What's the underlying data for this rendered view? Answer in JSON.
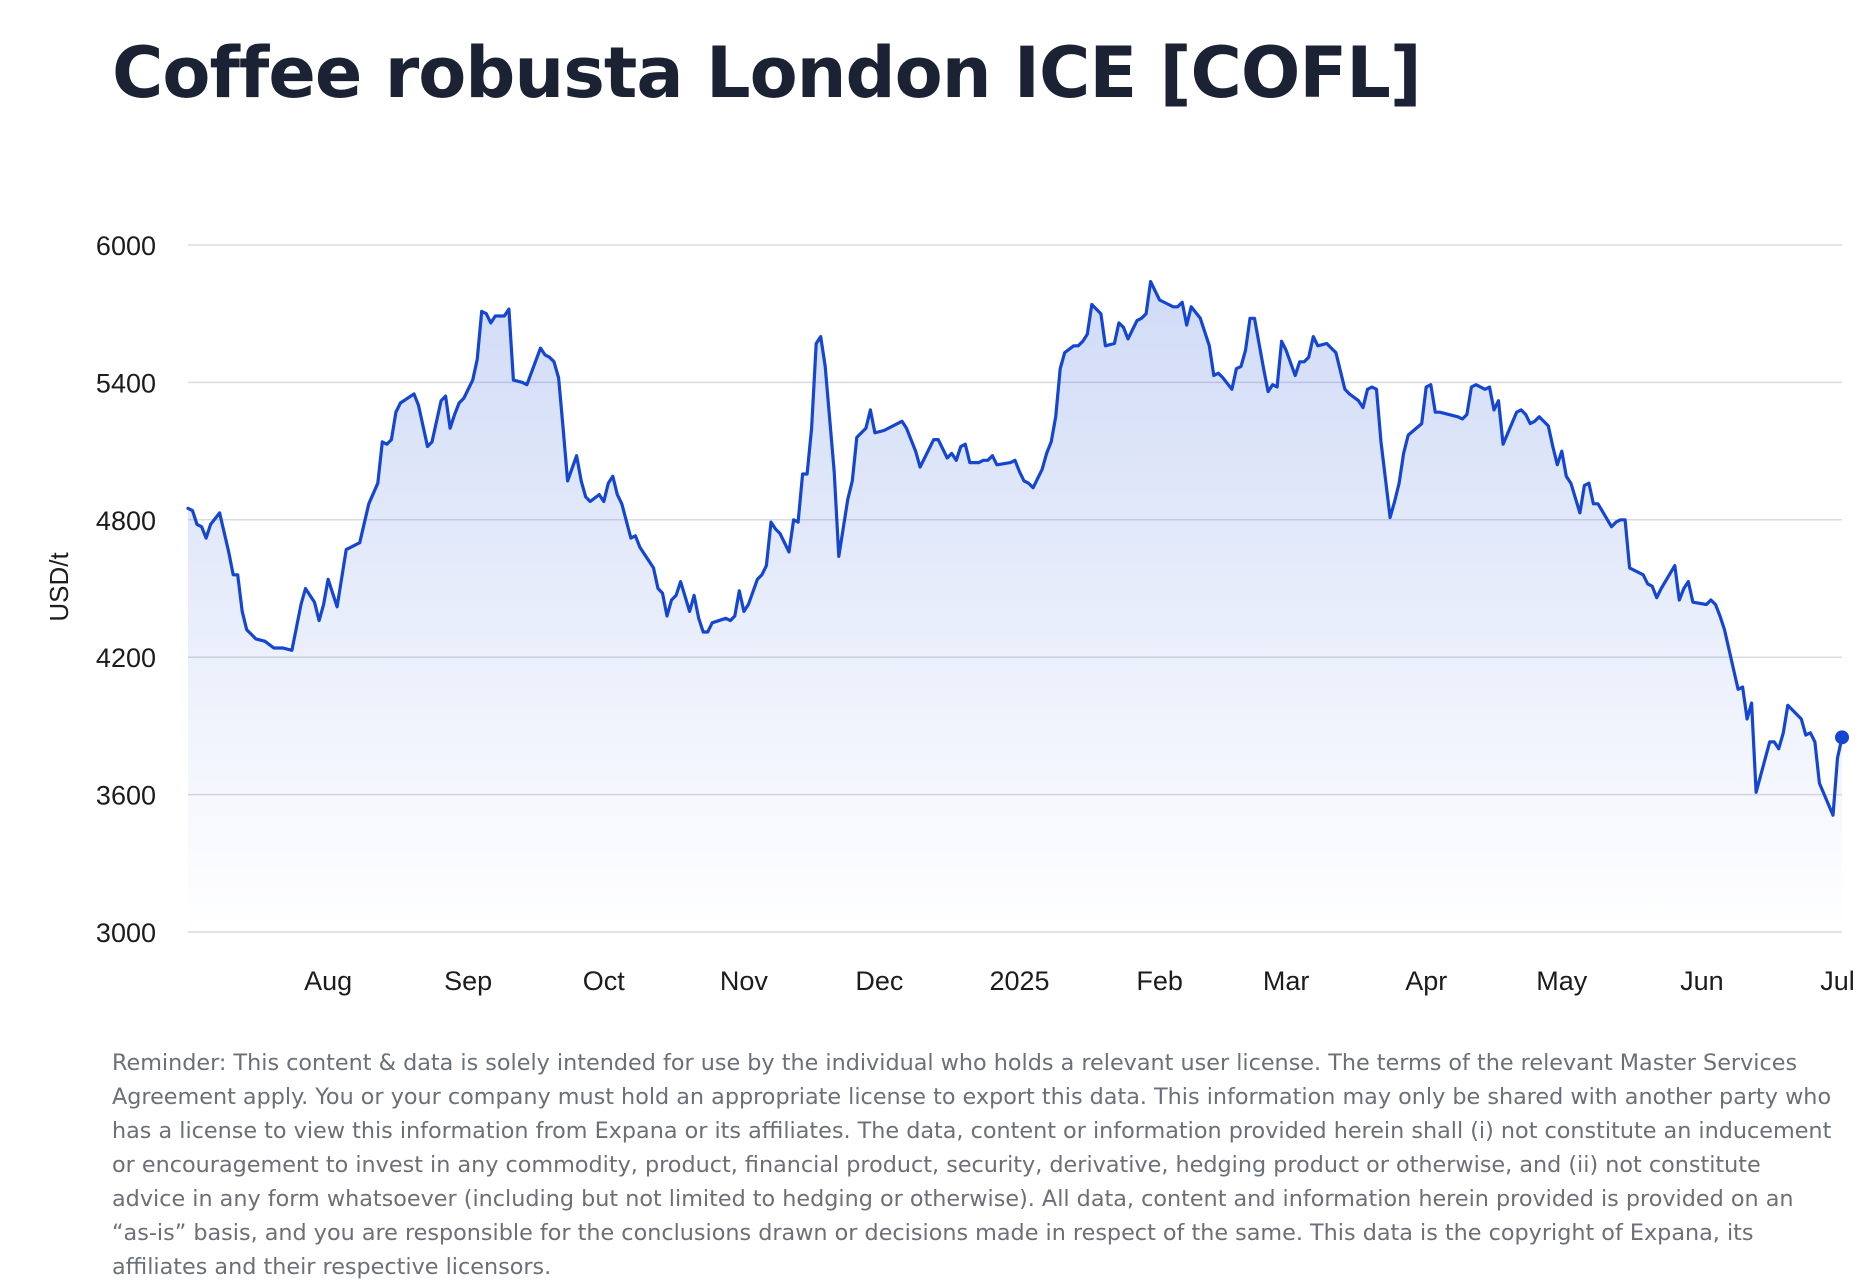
{
  "title": "Coffee robusta London ICE [COFL]",
  "colors": {
    "line": "#1446d1",
    "fill": "#2b5bd7",
    "grid": "#d8dbe2"
  },
  "chart_data": {
    "type": "area",
    "title": "Coffee robusta London ICE [COFL]",
    "xlabel": "",
    "ylabel": "USD/t",
    "ylim": [
      3000,
      6000
    ],
    "yticks": [
      3000,
      3600,
      4200,
      4800,
      5400,
      6000
    ],
    "xlim": [
      "2024-07-15",
      "2025-07-16"
    ],
    "xticks": [
      {
        "date": "2024-08-01",
        "label": "Aug"
      },
      {
        "date": "2024-09-01",
        "label": "Sep"
      },
      {
        "date": "2024-10-01",
        "label": "Oct"
      },
      {
        "date": "2024-11-01",
        "label": "Nov"
      },
      {
        "date": "2024-12-01",
        "label": "Dec"
      },
      {
        "date": "2025-01-01",
        "label": "2025"
      },
      {
        "date": "2025-02-01",
        "label": "Feb"
      },
      {
        "date": "2025-03-01",
        "label": "Mar"
      },
      {
        "date": "2025-04-01",
        "label": "Apr"
      },
      {
        "date": "2025-05-01",
        "label": "May"
      },
      {
        "date": "2025-06-01",
        "label": "Jun"
      },
      {
        "date": "2025-07-01",
        "label": "Jul"
      }
    ],
    "grid": true,
    "legend": "none",
    "series": [
      {
        "name": "COFL",
        "x": [
          "2024-07-15",
          "2024-07-16",
          "2024-07-17",
          "2024-07-18",
          "2024-07-19",
          "2024-07-20",
          "2024-07-22",
          "2024-07-24",
          "2024-07-25",
          "2024-07-26",
          "2024-07-27",
          "2024-07-28",
          "2024-07-29",
          "2024-07-30",
          "2024-08-01",
          "2024-08-03",
          "2024-08-05",
          "2024-08-07",
          "2024-08-09",
          "2024-08-10",
          "2024-08-12",
          "2024-08-13",
          "2024-08-14",
          "2024-08-15",
          "2024-08-17",
          "2024-08-19",
          "2024-08-20",
          "2024-08-22",
          "2024-08-24",
          "2024-08-26",
          "2024-08-27",
          "2024-08-28",
          "2024-08-29",
          "2024-08-30",
          "2024-08-31",
          "2024-09-03",
          "2024-09-04",
          "2024-09-05",
          "2024-09-06",
          "2024-09-07",
          "2024-09-09",
          "2024-09-10",
          "2024-09-11",
          "2024-09-12",
          "2024-09-13",
          "2024-09-14",
          "2024-09-16",
          "2024-09-17",
          "2024-09-18",
          "2024-09-19",
          "2024-09-20",
          "2024-09-21",
          "2024-09-23",
          "2024-09-24",
          "2024-09-25",
          "2024-09-27",
          "2024-09-28",
          "2024-10-01",
          "2024-10-02",
          "2024-10-03",
          "2024-10-04",
          "2024-10-05",
          "2024-10-06",
          "2024-10-07",
          "2024-10-09",
          "2024-10-10",
          "2024-10-11",
          "2024-10-12",
          "2024-10-14",
          "2024-10-15",
          "2024-10-16",
          "2024-10-17",
          "2024-10-18",
          "2024-10-19",
          "2024-10-21",
          "2024-10-22",
          "2024-10-23",
          "2024-10-24",
          "2024-10-26",
          "2024-10-27",
          "2024-10-28",
          "2024-10-29",
          "2024-10-30",
          "2024-10-31",
          "2024-11-01",
          "2024-11-03",
          "2024-11-04",
          "2024-11-05",
          "2024-11-06",
          "2024-11-07",
          "2024-11-08",
          "2024-11-11",
          "2024-11-12",
          "2024-11-13",
          "2024-11-14",
          "2024-11-15",
          "2024-11-16",
          "2024-11-18",
          "2024-11-19",
          "2024-11-20",
          "2024-11-21",
          "2024-11-22",
          "2024-11-23",
          "2024-11-25",
          "2024-11-26",
          "2024-11-27",
          "2024-11-28",
          "2024-11-29",
          "2024-11-30",
          "2024-12-01",
          "2024-12-02",
          "2024-12-03",
          "2024-12-05",
          "2024-12-06",
          "2024-12-08",
          "2024-12-09",
          "2024-12-10",
          "2024-12-12",
          "2024-12-13",
          "2024-12-14",
          "2024-12-16",
          "2024-12-17",
          "2024-12-19",
          "2024-12-20",
          "2024-12-21",
          "2024-12-23",
          "2024-12-24",
          "2024-12-25",
          "2024-12-27",
          "2024-12-28",
          "2024-12-30",
          "2024-12-31",
          "2025-01-01",
          "2025-01-02",
          "2025-01-03",
          "2025-01-04",
          "2025-01-06",
          "2025-01-07",
          "2025-01-08",
          "2025-01-09",
          "2025-01-10",
          "2025-01-13",
          "2025-01-14",
          "2025-01-15",
          "2025-01-16",
          "2025-01-17",
          "2025-01-18",
          "2025-01-20",
          "2025-01-21",
          "2025-01-22",
          "2025-01-23",
          "2025-01-24",
          "2025-01-25",
          "2025-01-27",
          "2025-01-28",
          "2025-01-29",
          "2025-01-30",
          "2025-01-31",
          "2025-02-02",
          "2025-02-03",
          "2025-02-05",
          "2025-02-06",
          "2025-02-07",
          "2025-02-08",
          "2025-02-10",
          "2025-02-11",
          "2025-02-12",
          "2025-02-13",
          "2025-02-14",
          "2025-02-15",
          "2025-02-17",
          "2025-02-18",
          "2025-02-19",
          "2025-02-20",
          "2025-02-21",
          "2025-02-22",
          "2025-02-24",
          "2025-02-25",
          "2025-02-26",
          "2025-02-27",
          "2025-02-28",
          "2025-03-01",
          "2025-03-03",
          "2025-03-04",
          "2025-03-05",
          "2025-03-06",
          "2025-03-07",
          "2025-03-08",
          "2025-03-10",
          "2025-03-11",
          "2025-03-12",
          "2025-03-13",
          "2025-03-14",
          "2025-03-15",
          "2025-03-17",
          "2025-03-18",
          "2025-03-19",
          "2025-03-20",
          "2025-03-21",
          "2025-03-22",
          "2025-03-24",
          "2025-03-25",
          "2025-03-26",
          "2025-03-27",
          "2025-03-28",
          "2025-03-29",
          "2025-03-31",
          "2025-04-01",
          "2025-04-02",
          "2025-04-03",
          "2025-04-04",
          "2025-04-05",
          "2025-04-07",
          "2025-04-08",
          "2025-04-09",
          "2025-04-10",
          "2025-04-11",
          "2025-04-14",
          "2025-04-15",
          "2025-04-16",
          "2025-04-17",
          "2025-04-18",
          "2025-04-22",
          "2025-04-23",
          "2025-04-24",
          "2025-04-25",
          "2025-04-26",
          "2025-04-28",
          "2025-04-29",
          "2025-04-30",
          "2025-05-01",
          "2025-05-02",
          "2025-05-05",
          "2025-05-06",
          "2025-05-07",
          "2025-05-08",
          "2025-05-09",
          "2025-05-10",
          "2025-05-12",
          "2025-05-13",
          "2025-05-14",
          "2025-05-15",
          "2025-05-16",
          "2025-05-17",
          "2025-05-19",
          "2025-05-20",
          "2025-05-21",
          "2025-05-22",
          "2025-05-23",
          "2025-05-26",
          "2025-05-27",
          "2025-05-28",
          "2025-05-29",
          "2025-05-30",
          "2025-06-02",
          "2025-06-03",
          "2025-06-04",
          "2025-06-05",
          "2025-06-06",
          "2025-06-09",
          "2025-06-10",
          "2025-06-11",
          "2025-06-12",
          "2025-06-13",
          "2025-06-16",
          "2025-06-17",
          "2025-06-18",
          "2025-06-19",
          "2025-06-20",
          "2025-06-23",
          "2025-06-24",
          "2025-06-25",
          "2025-06-26",
          "2025-06-27",
          "2025-06-30",
          "2025-07-01",
          "2025-07-02",
          "2025-07-03",
          "2025-07-04",
          "2025-07-07",
          "2025-07-08",
          "2025-07-09",
          "2025-07-10",
          "2025-07-11",
          "2025-07-14",
          "2025-07-15",
          "2025-07-16"
        ],
        "values": [
          4850,
          4840,
          4780,
          4770,
          4720,
          4780,
          4830,
          4660,
          4560,
          4560,
          4400,
          4320,
          4300,
          4280,
          4270,
          4240,
          4240,
          4230,
          4430,
          4500,
          4440,
          4360,
          4430,
          4540,
          4420,
          4670,
          4680,
          4700,
          4870,
          4960,
          5140,
          5130,
          5150,
          5270,
          5310,
          5350,
          5300,
          5210,
          5120,
          5140,
          5320,
          5340,
          5200,
          5260,
          5310,
          5330,
          5410,
          5500,
          5710,
          5700,
          5660,
          5690,
          5690,
          5720,
          5410,
          5400,
          5390,
          5550,
          5520,
          5510,
          5490,
          5420,
          5200,
          4970,
          5080,
          4970,
          4900,
          4880,
          4910,
          4880,
          4960,
          4990,
          4910,
          4870,
          4720,
          4730,
          4680,
          4650,
          4590,
          4500,
          4480,
          4380,
          4450,
          4470,
          4530,
          4400,
          4470,
          4370,
          4310,
          4310,
          4350,
          4370,
          4360,
          4380,
          4490,
          4400,
          4430,
          4540,
          4560,
          4600,
          4790,
          4760,
          4740,
          4660,
          4800,
          4790,
          5000,
          5000,
          5200,
          5570,
          5600,
          5470,
          5010,
          4640,
          4890,
          4970,
          5160,
          5200,
          5280,
          5180,
          5190,
          5200,
          5220,
          5230,
          5200,
          5100,
          5030,
          5070,
          5150,
          5150,
          5070,
          5090,
          5060,
          5120,
          5130,
          5050,
          5050,
          5060,
          5060,
          5080,
          5040,
          5050,
          5060,
          5010,
          4970,
          4960,
          4940,
          5020,
          5090,
          5140,
          5250,
          5460,
          5530,
          5560,
          5560,
          5580,
          5610,
          5740,
          5700,
          5560,
          5570,
          5660,
          5640,
          5590,
          5670,
          5680,
          5700,
          5840,
          5800,
          5760,
          5740,
          5730,
          5730,
          5750,
          5650,
          5730,
          5680,
          5620,
          5560,
          5430,
          5440,
          5420,
          5370,
          5460,
          5470,
          5540,
          5680,
          5680,
          5460,
          5360,
          5390,
          5380,
          5580,
          5540,
          5430,
          5490,
          5490,
          5510,
          5600,
          5560,
          5570,
          5550,
          5530,
          5450,
          5370,
          5350,
          5320,
          5290,
          5370,
          5380,
          5370,
          5140,
          4810,
          4880,
          4960,
          5090,
          5170,
          5220,
          5380,
          5390,
          5270,
          5270,
          5250,
          5240,
          5260,
          5380,
          5390,
          5370,
          5380,
          5280,
          5320,
          5130,
          5270,
          5280,
          5260,
          5220,
          5230,
          5250,
          5210,
          5120,
          5040,
          5100,
          4990,
          4960,
          4830,
          4950,
          4960,
          4870,
          4870,
          4770,
          4790,
          4800,
          4800,
          4590,
          4560,
          4520,
          4510,
          4460,
          4500,
          4600,
          4450,
          4500,
          4530,
          4440,
          4430,
          4450,
          4430,
          4380,
          4320,
          4060,
          4070,
          3930,
          4000,
          3610,
          3830,
          3830,
          3800,
          3870,
          3990,
          3930,
          3860,
          3870,
          3830,
          3650,
          3510,
          3760,
          3850
        ]
      }
    ]
  },
  "disclaimer": "Reminder: This content & data is solely intended for use by the individual who holds a relevant user license. The terms of the relevant Master Services Agreement apply. You or your company must hold an appropriate license to export this data. This information may only be shared with another party who has a license to view this information from Expana or its affiliates. The data, content or information provided herein shall (i) not constitute an inducement or encouragement to invest in any commodity, product, financial product, security, derivative, hedging product or otherwise, and (ii) not constitute advice in any form whatsoever (including but not limited to hedging or otherwise). All data, content and information herein provided is provided on an “as-is” basis, and you are responsible for the conclusions drawn or decisions made in respect of the same. This data is the copyright of Expana, its affiliates and their respective licensors."
}
